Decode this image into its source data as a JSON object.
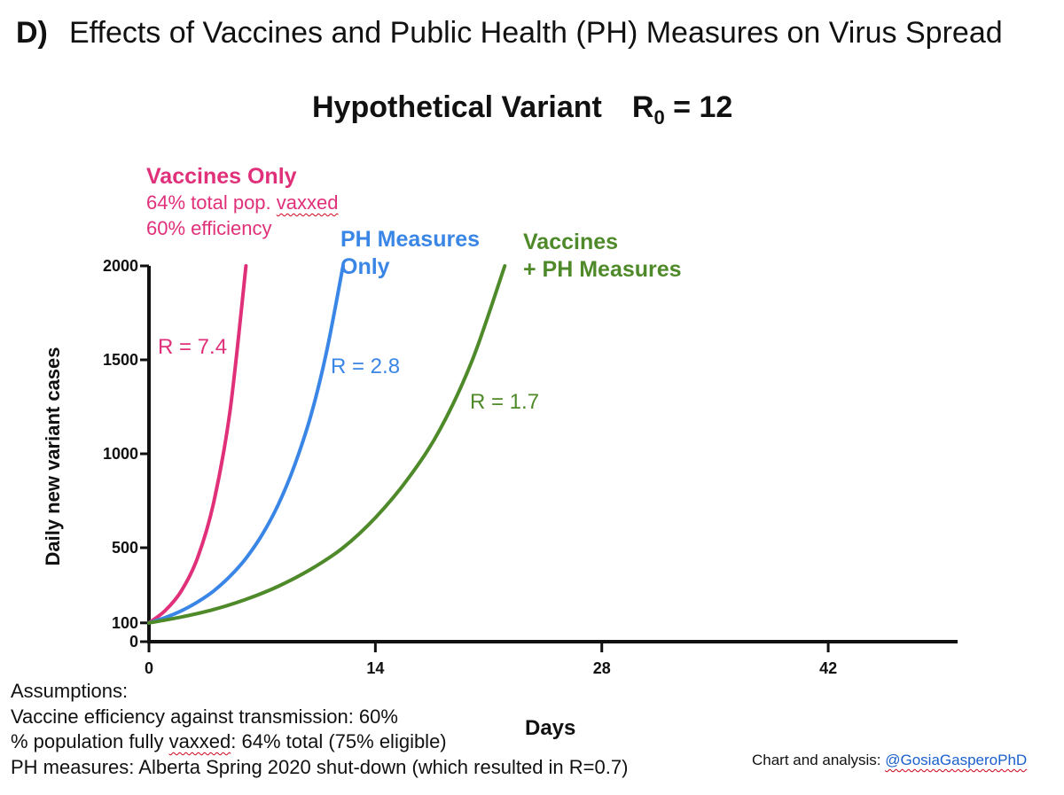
{
  "header": {
    "panel_letter": "D)",
    "title": "Effects of Vaccines and Public Health (PH) Measures on Virus Spread",
    "subtitle_main": "Hypothetical Variant",
    "subtitle_r_symbol": "R",
    "subtitle_r_subscript": "0",
    "subtitle_r_value": "= 12"
  },
  "annotations": {
    "vaccines_only": {
      "heading": "Vaccines Only",
      "line1_a": "64% total pop. ",
      "line1_b": "vaxxed",
      "line2": "60% efficiency",
      "r_label": "R = 7.4"
    },
    "ph_only": {
      "heading1": "PH Measures",
      "heading2": "Only",
      "r_label": "R = 2.8"
    },
    "combined": {
      "heading1": "Vaccines",
      "heading2": "+ PH Measures",
      "r_label": "R = 1.7"
    }
  },
  "assumptions": {
    "heading": "Assumptions:",
    "line1": "Vaccine efficiency against transmission: 60%",
    "line2_a": "% population fully ",
    "line2_b": "vaxxed",
    "line2_c": ": 64% total (75% eligible)",
    "line3": "PH measures: Alberta Spring 2020 shut-down (which resulted in R=0.7)"
  },
  "credit": {
    "prefix": "Chart and analysis: ",
    "handle": "@GosiaGasperoPhD"
  },
  "colors": {
    "vaccines_only": "#e0307a",
    "ph_only": "#3a86e6",
    "combined": "#4f8a2a",
    "axis": "#111111"
  },
  "chart_data": {
    "type": "line",
    "title": "Hypothetical Variant R0 = 12",
    "xlabel": "Days",
    "ylabel": "Daily new variant cases",
    "xlim": [
      0,
      50
    ],
    "ylim": [
      0,
      2000
    ],
    "x_ticks": [
      0,
      14,
      28,
      42
    ],
    "y_ticks": [
      0,
      100,
      500,
      1000,
      1500,
      2000
    ],
    "x_tick_labels": [
      "0",
      "14",
      "28",
      "42"
    ],
    "y_tick_labels": [
      "0",
      "100",
      "500",
      "1000",
      "1500",
      "2000"
    ],
    "grid": false,
    "legend": "none",
    "series": [
      {
        "name": "Vaccines Only",
        "r_label": "R = 7.4",
        "x": [
          0,
          1,
          2,
          3,
          4,
          5,
          6
        ],
        "y": [
          100,
          165,
          270,
          445,
          740,
          1220,
          2000
        ]
      },
      {
        "name": "PH Measures Only",
        "r_label": "R = 2.8",
        "x": [
          0,
          1,
          2,
          3,
          4,
          5,
          6,
          7,
          8,
          9,
          10,
          11,
          12
        ],
        "y": [
          100,
          128,
          164,
          211,
          270,
          347,
          444,
          570,
          730,
          938,
          1200,
          1550,
          2000
        ]
      },
      {
        "name": "Vaccines + PH Measures",
        "r_label": "R = 1.7",
        "x": [
          0,
          2,
          4,
          6,
          8,
          10,
          12,
          14,
          16,
          18,
          20,
          22
        ],
        "y": [
          100,
          131,
          171,
          225,
          295,
          385,
          500,
          660,
          865,
          1130,
          1500,
          2000
        ]
      }
    ]
  }
}
